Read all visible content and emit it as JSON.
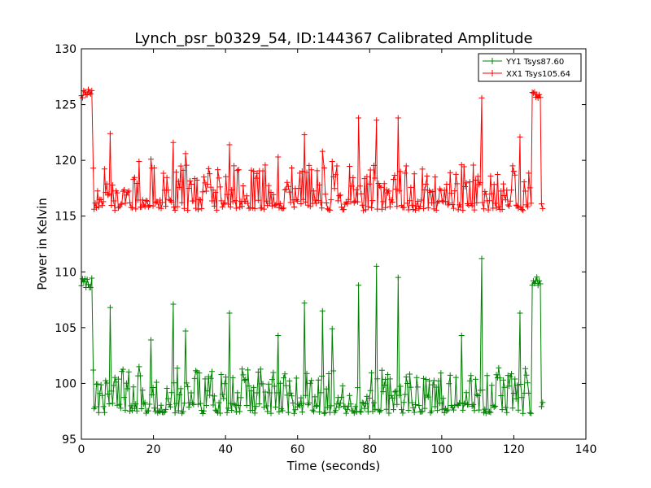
{
  "chart_data": {
    "type": "line",
    "title": "Lynch_psr_b0329_54, ID:144367 Calibrated Amplitude",
    "xlabel": "Time (seconds)",
    "ylabel": "Power in Kelvin",
    "xlim": [
      0,
      140
    ],
    "ylim": [
      95,
      130
    ],
    "xticks": [
      0,
      20,
      40,
      60,
      80,
      100,
      120,
      140
    ],
    "yticks": [
      95,
      100,
      105,
      110,
      115,
      120,
      125,
      130
    ],
    "grid": false,
    "legend_position": "top-right",
    "marker": "+",
    "series": [
      {
        "name": "YY1 Tsys87.60",
        "color": "#008000",
        "x_start": 0,
        "x_end": 128,
        "points": 400,
        "plateau_start": 109.0,
        "plateau_end_time": 3.2,
        "baseline": 97.8,
        "baseline_start_time": 3.2,
        "baseline_end_time": 124.8,
        "plateau_end": 109.1,
        "tail_time": 128.0,
        "tail_value": 98.0,
        "spikes": [
          {
            "t": 3.3,
            "v": 101.2
          },
          {
            "t": 8.0,
            "v": 106.8
          },
          {
            "t": 16.0,
            "v": 101.5
          },
          {
            "t": 19.3,
            "v": 103.9
          },
          {
            "t": 25.5,
            "v": 107.1
          },
          {
            "t": 28.9,
            "v": 104.7
          },
          {
            "t": 41.1,
            "v": 106.3
          },
          {
            "t": 54.6,
            "v": 104.3
          },
          {
            "t": 61.9,
            "v": 107.2
          },
          {
            "t": 66.9,
            "v": 106.5
          },
          {
            "t": 69.6,
            "v": 104.9
          },
          {
            "t": 76.9,
            "v": 108.8
          },
          {
            "t": 81.9,
            "v": 110.5
          },
          {
            "t": 87.9,
            "v": 109.5
          },
          {
            "t": 105.5,
            "v": 104.3
          },
          {
            "t": 111.1,
            "v": 111.2
          },
          {
            "t": 121.7,
            "v": 106.3
          }
        ]
      },
      {
        "name": "XX1 Tsys105.64",
        "color": "#ff0000",
        "x_start": 0,
        "x_end": 128,
        "points": 400,
        "plateau_start": 126.0,
        "plateau_end_time": 3.2,
        "baseline": 116.0,
        "baseline_start_time": 3.2,
        "baseline_end_time": 124.8,
        "plateau_end": 125.9,
        "tail_time": 128.0,
        "tail_value": 115.8,
        "spikes": [
          {
            "t": 3.3,
            "v": 119.3
          },
          {
            "t": 8.0,
            "v": 122.4
          },
          {
            "t": 16.0,
            "v": 119.9
          },
          {
            "t": 19.3,
            "v": 120.1
          },
          {
            "t": 25.5,
            "v": 121.6
          },
          {
            "t": 28.9,
            "v": 120.6
          },
          {
            "t": 41.1,
            "v": 121.4
          },
          {
            "t": 54.6,
            "v": 120.3
          },
          {
            "t": 61.9,
            "v": 122.3
          },
          {
            "t": 66.9,
            "v": 120.8
          },
          {
            "t": 69.6,
            "v": 119.9
          },
          {
            "t": 76.9,
            "v": 123.8
          },
          {
            "t": 81.9,
            "v": 123.6
          },
          {
            "t": 87.9,
            "v": 123.8
          },
          {
            "t": 105.5,
            "v": 119.6
          },
          {
            "t": 111.1,
            "v": 125.6
          },
          {
            "t": 121.7,
            "v": 122.1
          }
        ]
      }
    ]
  }
}
